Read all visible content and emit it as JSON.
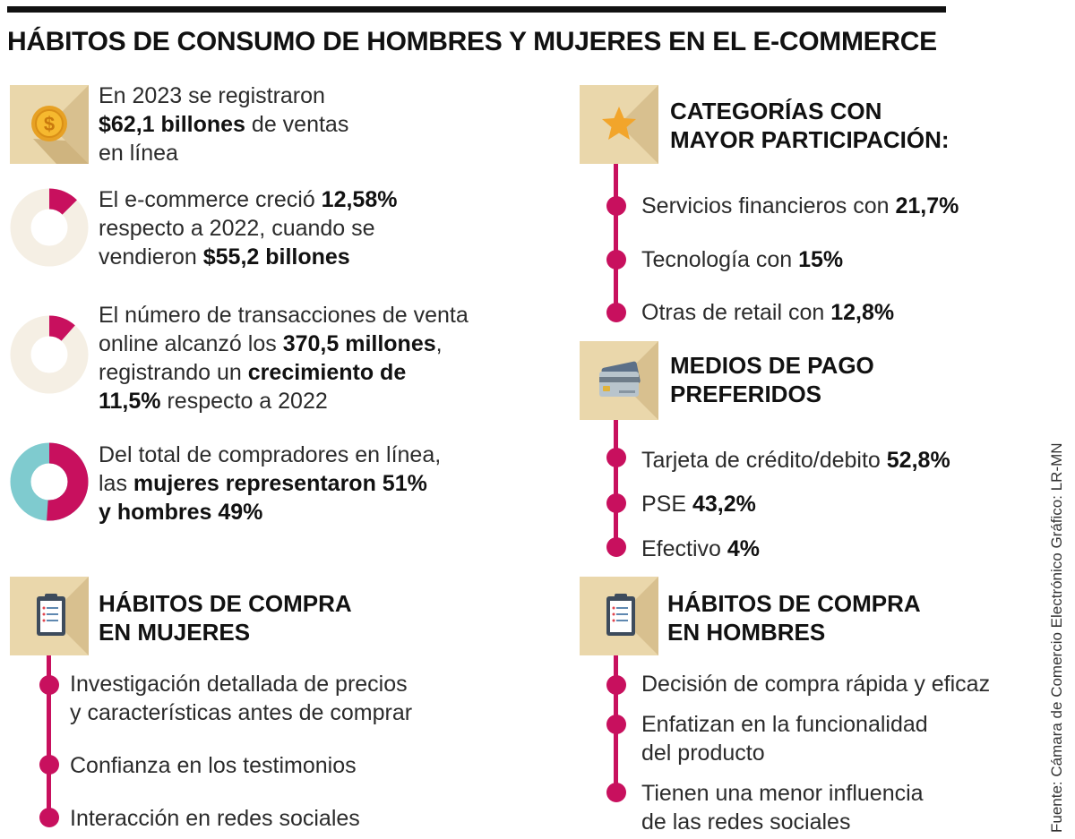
{
  "title": "HÁBITOS DE CONSUMO DE HOMBRES Y MUJERES EN EL E-COMMERCE",
  "colors": {
    "accent": "#c8105e",
    "teal": "#7fcbcf",
    "icon_bg": "#ead7ab",
    "donut_bg": "#f5efe4"
  },
  "left": {
    "sales": {
      "icon": "coin-icon",
      "l1": "En 2023 se registraron",
      "l2_bold": "$62,1 billones",
      "l2_rest": " de ventas",
      "l3": "en línea"
    },
    "growth": {
      "percent": 12.58,
      "l1_pre": "El e-commerce creció ",
      "l1_bold": "12,58%",
      "l2": "respecto a 2022, cuando se",
      "l3_pre": "vendieron ",
      "l3_bold": "$55,2 billones"
    },
    "transactions": {
      "percent": 11.5,
      "l1": "El número de transacciones de venta",
      "l2_pre": "online alcanzó los ",
      "l2_bold": "370,5 millones",
      "l2_post": ",",
      "l3_pre": "registrando un ",
      "l3_bold": "crecimiento de",
      "l4_bold": "11,5%",
      "l4_rest": " respecto a 2022"
    },
    "gender": {
      "women_percent": 51,
      "men_percent": 49,
      "l1": "Del total de compradores en línea,",
      "l2_pre": "las ",
      "l2_bold": "mujeres representaron 51%",
      "l3_bold": "y hombres 49%"
    },
    "women_habits": {
      "icon": "clipboard-icon",
      "title_l1": "HÁBITOS DE COMPRA",
      "title_l2": "EN MUJERES",
      "items": [
        [
          "Investigación detallada de precios",
          "y características antes de comprar"
        ],
        [
          "Confianza en los testimonios"
        ],
        [
          "Interacción en redes sociales"
        ]
      ]
    }
  },
  "right": {
    "categories": {
      "icon": "star-icon",
      "title_l1": "CATEGORÍAS CON",
      "title_l2": "MAYOR PARTICIPACIÓN:",
      "items": [
        {
          "label": "Servicios financieros con ",
          "value": "21,7%"
        },
        {
          "label": "Tecnología con ",
          "value": "15%"
        },
        {
          "label": "Otras de retail con ",
          "value": "12,8%"
        }
      ]
    },
    "payment": {
      "icon": "credit-card-icon",
      "title_l1": "MEDIOS DE PAGO",
      "title_l2": "PREFERIDOS",
      "items": [
        {
          "label": "Tarjeta de crédito/debito ",
          "value": "52,8%"
        },
        {
          "label": "PSE ",
          "value": "43,2%"
        },
        {
          "label": "Efectivo ",
          "value": "4%"
        }
      ]
    },
    "men_habits": {
      "icon": "clipboard-icon",
      "title_l1": "HÁBITOS DE COMPRA",
      "title_l2": "EN HOMBRES",
      "items": [
        [
          "Decisión de compra rápida y eficaz"
        ],
        [
          "Enfatizan en la funcionalidad",
          "del producto"
        ],
        [
          "Tienen una menor influencia",
          "de las redes sociales"
        ]
      ]
    }
  },
  "credit": "Fuente: Cámara de Comercio Electrónico  Gráfico: LR-MN"
}
